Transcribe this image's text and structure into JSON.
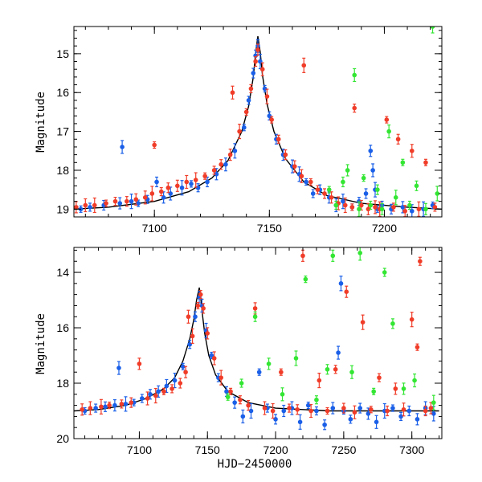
{
  "chart_data": [
    {
      "type": "scatter",
      "panel": "top",
      "title": "",
      "xlabel": "",
      "ylabel": "Magnitude",
      "xlim": [
        7065,
        7225
      ],
      "ylim": [
        19.2,
        14.3
      ],
      "y_inverted": true,
      "xticks": [
        7100,
        7150,
        7200
      ],
      "yticks": [
        15,
        16,
        17,
        18,
        19
      ],
      "model_curve": {
        "x": [
          7065,
          7080,
          7100,
          7115,
          7125,
          7132,
          7138,
          7141,
          7143,
          7144,
          7145,
          7146,
          7147,
          7149,
          7152,
          7157,
          7165,
          7175,
          7190,
          7210,
          7225
        ],
        "y": [
          19.0,
          18.95,
          18.8,
          18.55,
          18.2,
          17.75,
          17.0,
          16.35,
          15.6,
          15.0,
          14.55,
          14.95,
          15.55,
          16.3,
          17.0,
          17.7,
          18.3,
          18.65,
          18.85,
          18.95,
          19.0
        ]
      },
      "series": [
        {
          "name": "",
          "color": "#1a5fe8",
          "x": [
            7068,
            7072,
            7078,
            7085,
            7086,
            7090,
            7093,
            7097,
            7101,
            7104,
            7107,
            7112,
            7116,
            7119,
            7123,
            7127,
            7131,
            7135,
            7139,
            7141,
            7143,
            7144,
            7145,
            7146,
            7148,
            7150,
            7153,
            7156,
            7160,
            7163,
            7166,
            7169,
            7172,
            7176,
            7179,
            7182,
            7186,
            7189,
            7192,
            7194,
            7195,
            7196,
            7197,
            7199,
            7203,
            7208,
            7212,
            7217,
            7221
          ],
          "y": [
            19.0,
            18.95,
            18.9,
            18.85,
            17.4,
            18.8,
            18.85,
            18.75,
            18.3,
            18.7,
            18.6,
            18.45,
            18.35,
            18.45,
            18.3,
            18.1,
            17.85,
            17.5,
            16.9,
            16.2,
            15.5,
            15.05,
            14.8,
            15.2,
            15.9,
            16.6,
            17.2,
            17.6,
            17.9,
            18.1,
            18.3,
            18.6,
            18.5,
            18.7,
            18.9,
            18.8,
            18.95,
            18.8,
            18.6,
            17.5,
            18.0,
            18.5,
            19.0,
            18.9,
            19.0,
            18.95,
            19.05,
            19.0,
            18.9
          ]
        },
        {
          "name": "",
          "color": "#f03c28",
          "x": [
            7066,
            7070,
            7074,
            7079,
            7083,
            7088,
            7092,
            7096,
            7099,
            7100,
            7103,
            7106,
            7110,
            7114,
            7118,
            7122,
            7126,
            7129,
            7133,
            7134,
            7137,
            7140,
            7142,
            7144,
            7145,
            7147,
            7149,
            7151,
            7154,
            7157,
            7161,
            7164,
            7165,
            7168,
            7171,
            7174,
            7177,
            7180,
            7183,
            7186,
            7187,
            7190,
            7193,
            7196,
            7198,
            7201,
            7204,
            7206,
            7209,
            7212,
            7215,
            7218,
            7222
          ],
          "y": [
            18.95,
            18.9,
            18.9,
            18.85,
            18.8,
            18.8,
            18.75,
            18.7,
            18.6,
            17.35,
            18.55,
            18.45,
            18.4,
            18.3,
            18.25,
            18.15,
            18.0,
            17.85,
            17.6,
            16.0,
            17.0,
            16.5,
            15.9,
            15.2,
            14.9,
            15.4,
            16.1,
            16.7,
            17.2,
            17.6,
            17.9,
            18.15,
            15.3,
            18.3,
            18.5,
            18.6,
            18.7,
            18.85,
            18.9,
            18.95,
            16.4,
            18.9,
            19.0,
            18.95,
            19.0,
            16.7,
            18.95,
            17.2,
            19.05,
            17.5,
            19.0,
            17.8,
            18.95
          ]
        },
        {
          "name": "",
          "color": "#33e633",
          "x": [
            7176,
            7179,
            7182,
            7184,
            7187,
            7189,
            7191,
            7194,
            7197,
            7199,
            7202,
            7205,
            7208,
            7211,
            7214,
            7218,
            7221,
            7223
          ],
          "y": [
            18.5,
            18.9,
            18.3,
            18.0,
            15.55,
            19.0,
            18.2,
            18.9,
            18.5,
            19.0,
            17.0,
            18.7,
            17.8,
            18.9,
            18.4,
            19.0,
            14.3,
            18.6
          ]
        }
      ]
    },
    {
      "type": "scatter",
      "panel": "bottom",
      "title": "",
      "xlabel": "HJD−2450000",
      "ylabel": "Magnitude",
      "xlim": [
        7052,
        7322
      ],
      "ylim": [
        20.0,
        13.1
      ],
      "y_inverted": true,
      "xticks": [
        7100,
        7150,
        7200,
        7250,
        7300
      ],
      "yticks": [
        14,
        16,
        18,
        20
      ],
      "model_curve": {
        "x": [
          7052,
          7070,
          7090,
          7105,
          7118,
          7126,
          7132,
          7137,
          7140,
          7142,
          7144,
          7145,
          7146,
          7148,
          7151,
          7156,
          7165,
          7180,
          7200,
          7240,
          7280,
          7320
        ],
        "y": [
          19.0,
          18.95,
          18.8,
          18.55,
          18.2,
          17.8,
          17.2,
          16.4,
          15.7,
          15.0,
          14.55,
          14.9,
          15.4,
          16.2,
          17.0,
          17.7,
          18.3,
          18.7,
          18.9,
          19.0,
          19.0,
          19.0
        ]
      },
      "series": [
        {
          "name": "",
          "color": "#1a5fe8",
          "x": [
            7060,
            7068,
            7075,
            7082,
            7085,
            7090,
            7096,
            7102,
            7108,
            7114,
            7120,
            7126,
            7132,
            7137,
            7141,
            7144,
            7146,
            7149,
            7153,
            7158,
            7164,
            7170,
            7176,
            7182,
            7188,
            7194,
            7200,
            7206,
            7212,
            7218,
            7224,
            7230,
            7236,
            7242,
            7246,
            7248,
            7250,
            7255,
            7262,
            7268,
            7274,
            7280,
            7286,
            7292,
            7298,
            7304,
            7310,
            7316
          ],
          "y": [
            19.0,
            18.9,
            18.85,
            18.8,
            17.45,
            18.75,
            18.7,
            18.55,
            18.4,
            18.3,
            18.1,
            17.9,
            17.4,
            16.6,
            15.6,
            14.9,
            15.2,
            16.1,
            17.0,
            17.8,
            18.3,
            18.7,
            19.2,
            19.0,
            17.6,
            18.9,
            19.3,
            19.0,
            18.9,
            19.4,
            18.8,
            19.0,
            19.5,
            18.9,
            16.9,
            14.4,
            19.0,
            19.3,
            18.9,
            19.1,
            19.4,
            19.0,
            18.9,
            19.2,
            19.0,
            19.3,
            18.9,
            19.1
          ]
        },
        {
          "name": "",
          "color": "#f03c28",
          "x": [
            7058,
            7064,
            7072,
            7078,
            7087,
            7094,
            7100,
            7106,
            7112,
            7118,
            7124,
            7130,
            7134,
            7136,
            7139,
            7143,
            7145,
            7147,
            7150,
            7155,
            7160,
            7167,
            7174,
            7180,
            7185,
            7192,
            7198,
            7204,
            7210,
            7216,
            7220,
            7226,
            7232,
            7238,
            7244,
            7250,
            7252,
            7258,
            7264,
            7270,
            7276,
            7282,
            7288,
            7294,
            7300,
            7304,
            7306,
            7310,
            7314
          ],
          "y": [
            18.95,
            18.9,
            18.85,
            18.8,
            18.75,
            18.7,
            17.3,
            18.55,
            18.45,
            18.3,
            18.2,
            18.0,
            17.6,
            15.6,
            16.3,
            15.2,
            14.8,
            15.3,
            16.2,
            17.1,
            17.8,
            18.3,
            18.6,
            18.8,
            15.3,
            18.9,
            19.0,
            17.6,
            18.9,
            18.95,
            13.4,
            19.0,
            17.9,
            19.0,
            17.5,
            18.9,
            14.7,
            19.05,
            15.8,
            18.95,
            17.8,
            19.0,
            18.2,
            18.95,
            15.7,
            16.7,
            13.6,
            19.0,
            18.9
          ]
        },
        {
          "name": "",
          "color": "#33e633",
          "x": [
            7165,
            7175,
            7185,
            7195,
            7205,
            7215,
            7222,
            7230,
            7238,
            7242,
            7256,
            7262,
            7272,
            7280,
            7286,
            7294,
            7302,
            7316
          ],
          "y": [
            18.5,
            18.0,
            15.6,
            17.3,
            18.4,
            17.1,
            14.25,
            18.6,
            17.5,
            13.4,
            17.6,
            13.3,
            18.3,
            14.0,
            15.85,
            18.2,
            17.9,
            18.7
          ]
        }
      ]
    }
  ]
}
